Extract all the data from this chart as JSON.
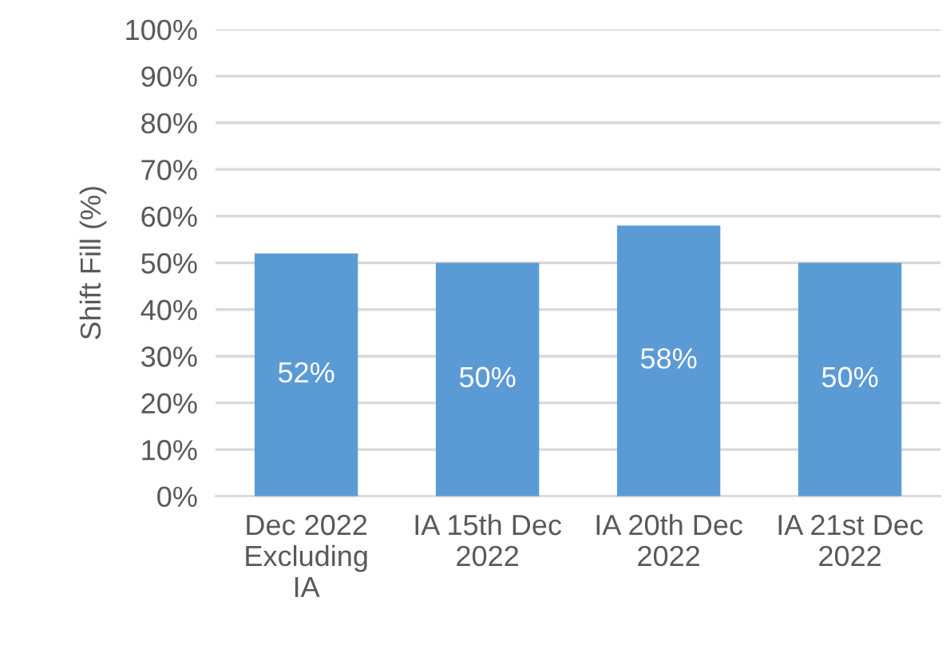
{
  "chart_data": {
    "type": "bar",
    "ylabel": "Shift Fill (%)",
    "categories": [
      "Dec 2022\nExcluding\nIA",
      "IA 15th Dec\n2022",
      "IA 20th Dec\n2022",
      "IA 21st Dec\n2022"
    ],
    "values": [
      52,
      50,
      58,
      50
    ],
    "value_labels": [
      "52%",
      "50%",
      "58%",
      "50%"
    ],
    "color": "#5b9bd5",
    "ylim": [
      0,
      100
    ],
    "yticks": [
      {
        "value": 0,
        "label": "0%"
      },
      {
        "value": 10,
        "label": "10%"
      },
      {
        "value": 20,
        "label": "20%"
      },
      {
        "value": 30,
        "label": "30%"
      },
      {
        "value": 40,
        "label": "40%"
      },
      {
        "value": 50,
        "label": "50%"
      },
      {
        "value": 60,
        "label": "60%"
      },
      {
        "value": 70,
        "label": "70%"
      },
      {
        "value": 80,
        "label": "80%"
      },
      {
        "value": 90,
        "label": "90%"
      },
      {
        "value": 100,
        "label": "100%"
      }
    ],
    "grid": "y",
    "legend": false
  }
}
